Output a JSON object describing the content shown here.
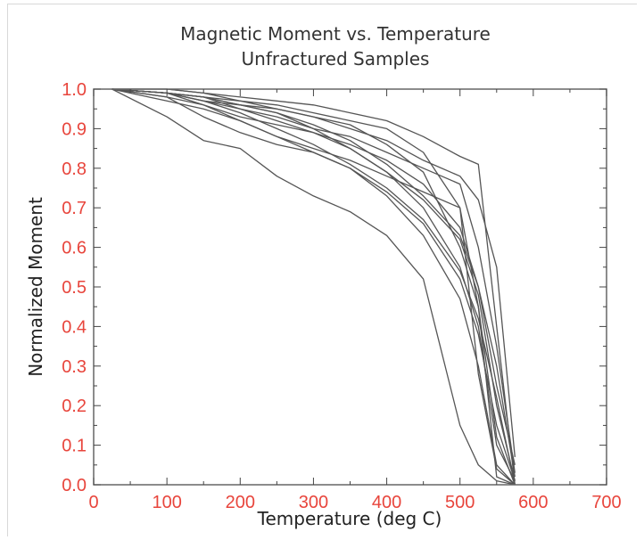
{
  "chart_data": {
    "type": "line",
    "title": "Magnetic Moment vs. Temperature",
    "subtitle": "Unfractured Samples",
    "xlabel": "Temperature (deg C)",
    "ylabel": "Normalized Moment",
    "xlim": [
      0,
      700
    ],
    "ylim": [
      0.0,
      1.0
    ],
    "xticks": [
      "0",
      "100",
      "200",
      "300",
      "400",
      "500",
      "600",
      "700"
    ],
    "yticks": [
      "0.0",
      "0.1",
      "0.2",
      "0.3",
      "0.4",
      "0.5",
      "0.6",
      "0.7",
      "0.8",
      "0.9",
      "1.0"
    ],
    "grid": false,
    "series_color": "#555555",
    "tick_label_color": "#e8453c",
    "series": [
      {
        "x": [
          25,
          100,
          150,
          200,
          250,
          300,
          350,
          400,
          450,
          500,
          525,
          550,
          575
        ],
        "y": [
          1.0,
          0.93,
          0.87,
          0.85,
          0.78,
          0.73,
          0.69,
          0.63,
          0.52,
          0.15,
          0.05,
          0.01,
          0.0
        ]
      },
      {
        "x": [
          25,
          100,
          150,
          200,
          250,
          300,
          350,
          400,
          450,
          500,
          525,
          550,
          575
        ],
        "y": [
          1.0,
          0.97,
          0.95,
          0.92,
          0.88,
          0.84,
          0.8,
          0.73,
          0.63,
          0.47,
          0.3,
          0.05,
          0.0
        ]
      },
      {
        "x": [
          25,
          100,
          150,
          200,
          250,
          300,
          350,
          400,
          450,
          500,
          525,
          550,
          575
        ],
        "y": [
          1.0,
          0.98,
          0.96,
          0.93,
          0.91,
          0.89,
          0.85,
          0.79,
          0.7,
          0.55,
          0.4,
          0.1,
          0.01
        ]
      },
      {
        "x": [
          25,
          100,
          150,
          200,
          250,
          300,
          350,
          400,
          450,
          500,
          525,
          550,
          575
        ],
        "y": [
          1.0,
          0.99,
          0.97,
          0.96,
          0.95,
          0.93,
          0.91,
          0.86,
          0.79,
          0.6,
          0.45,
          0.12,
          0.0
        ]
      },
      {
        "x": [
          25,
          100,
          150,
          200,
          250,
          300,
          350,
          400,
          450,
          500,
          525,
          550,
          575
        ],
        "y": [
          1.0,
          0.99,
          0.98,
          0.97,
          0.96,
          0.94,
          0.92,
          0.9,
          0.84,
          0.7,
          0.28,
          0.04,
          0.0
        ]
      },
      {
        "x": [
          25,
          100,
          150,
          200,
          250,
          300,
          350,
          400,
          450,
          500,
          525,
          550,
          575
        ],
        "y": [
          1.0,
          0.99,
          0.98,
          0.96,
          0.94,
          0.91,
          0.87,
          0.81,
          0.73,
          0.63,
          0.5,
          0.3,
          0.02
        ]
      },
      {
        "x": [
          25,
          100,
          150,
          200,
          250,
          300,
          350,
          400,
          450,
          500,
          525,
          550,
          575
        ],
        "y": [
          1.0,
          0.99,
          0.97,
          0.95,
          0.93,
          0.9,
          0.88,
          0.84,
          0.8,
          0.76,
          0.6,
          0.35,
          0.03
        ]
      },
      {
        "x": [
          25,
          100,
          150,
          200,
          250,
          300,
          350,
          400,
          450,
          500,
          525,
          550,
          575
        ],
        "y": [
          1.0,
          1.0,
          0.99,
          0.98,
          0.97,
          0.96,
          0.94,
          0.92,
          0.88,
          0.83,
          0.81,
          0.4,
          0.0
        ]
      },
      {
        "x": [
          25,
          100,
          150,
          200,
          250,
          300,
          350,
          400,
          450,
          500,
          525,
          550,
          575
        ],
        "y": [
          1.0,
          0.98,
          0.93,
          0.89,
          0.86,
          0.84,
          0.8,
          0.74,
          0.66,
          0.52,
          0.38,
          0.15,
          0.01
        ]
      },
      {
        "x": [
          25,
          100,
          150,
          200,
          250,
          300,
          350,
          400,
          450,
          500,
          525,
          550,
          575
        ],
        "y": [
          1.0,
          0.99,
          0.97,
          0.94,
          0.9,
          0.86,
          0.81,
          0.75,
          0.67,
          0.54,
          0.42,
          0.22,
          0.0
        ]
      },
      {
        "x": [
          25,
          100,
          150,
          200,
          250,
          300,
          350,
          400,
          450,
          500,
          525,
          550,
          575
        ],
        "y": [
          1.0,
          0.99,
          0.98,
          0.95,
          0.92,
          0.89,
          0.86,
          0.82,
          0.76,
          0.65,
          0.5,
          0.25,
          0.05
        ]
      },
      {
        "x": [
          25,
          100,
          150,
          200,
          250,
          300,
          350,
          400,
          450,
          500,
          525,
          550,
          575
        ],
        "y": [
          1.0,
          1.0,
          0.99,
          0.97,
          0.95,
          0.93,
          0.9,
          0.87,
          0.82,
          0.78,
          0.72,
          0.55,
          0.07
        ]
      },
      {
        "x": [
          25,
          100,
          150,
          200,
          250,
          300,
          350,
          400,
          450,
          500,
          525,
          550,
          575
        ],
        "y": [
          1.0,
          0.99,
          0.96,
          0.92,
          0.88,
          0.85,
          0.82,
          0.78,
          0.74,
          0.7,
          0.45,
          0.02,
          0.0
        ]
      },
      {
        "x": [
          25,
          100,
          150,
          200,
          250,
          300,
          350,
          400,
          450,
          500,
          525,
          550,
          575
        ],
        "y": [
          1.0,
          0.99,
          0.98,
          0.96,
          0.94,
          0.9,
          0.85,
          0.79,
          0.72,
          0.62,
          0.48,
          0.2,
          0.01
        ]
      }
    ]
  }
}
